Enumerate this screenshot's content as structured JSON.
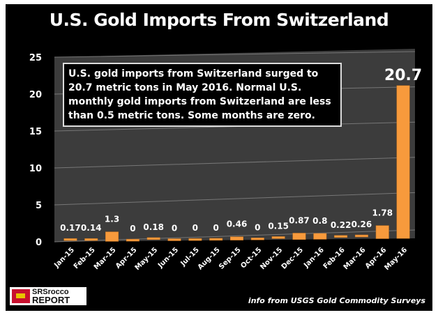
{
  "chart_data": {
    "type": "bar",
    "title": "U.S. Gold Imports From Switzerland",
    "categories": [
      "Jan-15",
      "Feb-15",
      "Mar-15",
      "Apr-15",
      "May-15",
      "Jun-15",
      "Jul-15",
      "Aug-15",
      "Sep-15",
      "Oct-15",
      "Nov-15",
      "Dec-15",
      "Jan-16",
      "Feb-16",
      "Mar-16",
      "Apr-16",
      "May-16"
    ],
    "values": [
      0.17,
      0.14,
      1.3,
      0,
      0.18,
      0,
      0,
      0,
      0.46,
      0,
      0.15,
      0.87,
      0.8,
      0.22,
      0.26,
      1.78,
      20.7
    ],
    "data_labels": [
      "0.17",
      "0.14",
      "1.3",
      "0",
      "0.18",
      "0",
      "0",
      "0",
      "0.46",
      "0",
      "0.15",
      "0.87",
      "0.8",
      "0.22",
      "0.26",
      "1.78",
      "20.7"
    ],
    "yticks": [
      0,
      5,
      10,
      15,
      20,
      25
    ],
    "ylim": [
      0,
      25
    ],
    "xlabel": "",
    "ylabel": "",
    "grid": true,
    "legend": "none",
    "bar_color": "#f79a3c",
    "plot_bg": "#3c3c3c",
    "annotation": "U.S. gold imports from Switzerland surged to 20.7 metric tons in May 2016.  Normal U.S. monthly gold imports from Switzerland are less than 0.5 metric tons.  Some months are zero."
  },
  "credit": "info from USGS Gold Commodity Surveys",
  "logo": {
    "line1": "SRSrocco",
    "line2": "REPORT"
  }
}
